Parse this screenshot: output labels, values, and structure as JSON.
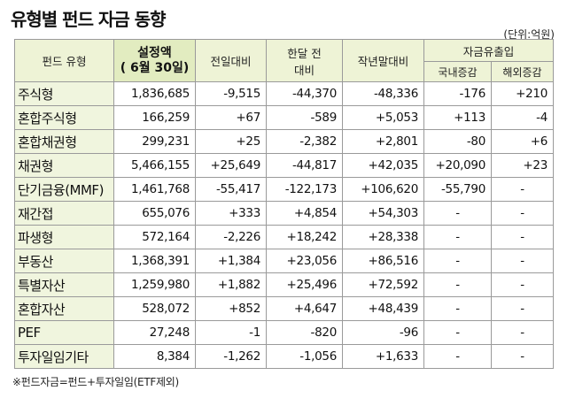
{
  "title": "유형별 펀드 자금 동향",
  "unit": "(단위:억원)",
  "headers": {
    "type": "펀드 유형",
    "setup_line1": "설정액",
    "setup_line2": "( 6월 30일)",
    "prev_day": "전일대비",
    "month_line1": "한달 전",
    "month_line2": "대비",
    "year_end": "작년말대비",
    "flow": "자금유출입",
    "domestic": "국내증감",
    "overseas": "해외증감"
  },
  "rows": [
    {
      "name": "주식형",
      "setup": "1,836,685",
      "prev_day": "-9,515",
      "month": "-44,370",
      "year_end": "-48,336",
      "domestic": "-176",
      "overseas": "+210"
    },
    {
      "name": "혼합주식형",
      "setup": "166,259",
      "prev_day": "+67",
      "month": "-589",
      "year_end": "+5,053",
      "domestic": "+113",
      "overseas": "-4"
    },
    {
      "name": "혼합채권형",
      "setup": "299,231",
      "prev_day": "+25",
      "month": "-2,382",
      "year_end": "+2,801",
      "domestic": "-80",
      "overseas": "+6"
    },
    {
      "name": "채권형",
      "setup": "5,466,155",
      "prev_day": "+25,649",
      "month": "-44,817",
      "year_end": "+42,035",
      "domestic": "+20,090",
      "overseas": "+23"
    },
    {
      "name": "단기금융(MMF)",
      "setup": "1,461,768",
      "prev_day": "-55,417",
      "month": "-122,173",
      "year_end": "+106,620",
      "domestic": "-55,790",
      "overseas": "-"
    },
    {
      "name": "재간접",
      "setup": "655,076",
      "prev_day": "+333",
      "month": "+4,854",
      "year_end": "+54,303",
      "domestic": "-",
      "overseas": "-"
    },
    {
      "name": "파생형",
      "setup": "572,164",
      "prev_day": "-2,226",
      "month": "+18,242",
      "year_end": "+28,338",
      "domestic": "-",
      "overseas": "-"
    },
    {
      "name": "부동산",
      "setup": "1,368,391",
      "prev_day": "+1,384",
      "month": "+23,056",
      "year_end": "+86,516",
      "domestic": "-",
      "overseas": "-"
    },
    {
      "name": "특별자산",
      "setup": "1,259,980",
      "prev_day": "+1,882",
      "month": "+25,496",
      "year_end": "+72,592",
      "domestic": "-",
      "overseas": "-"
    },
    {
      "name": "혼합자산",
      "setup": "528,072",
      "prev_day": "+852",
      "month": "+4,647",
      "year_end": "+48,439",
      "domestic": "-",
      "overseas": "-"
    },
    {
      "name": "PEF",
      "setup": "27,248",
      "prev_day": "-1",
      "month": "-820",
      "year_end": "-96",
      "domestic": "-",
      "overseas": "-"
    },
    {
      "name": "투자일임기타",
      "setup": "8,384",
      "prev_day": "-1,262",
      "month": "-1,056",
      "year_end": "+1,633",
      "domestic": "-",
      "overseas": "-"
    }
  ],
  "footnote": "※펀드자금=펀드+투자일임(ETF제외)"
}
